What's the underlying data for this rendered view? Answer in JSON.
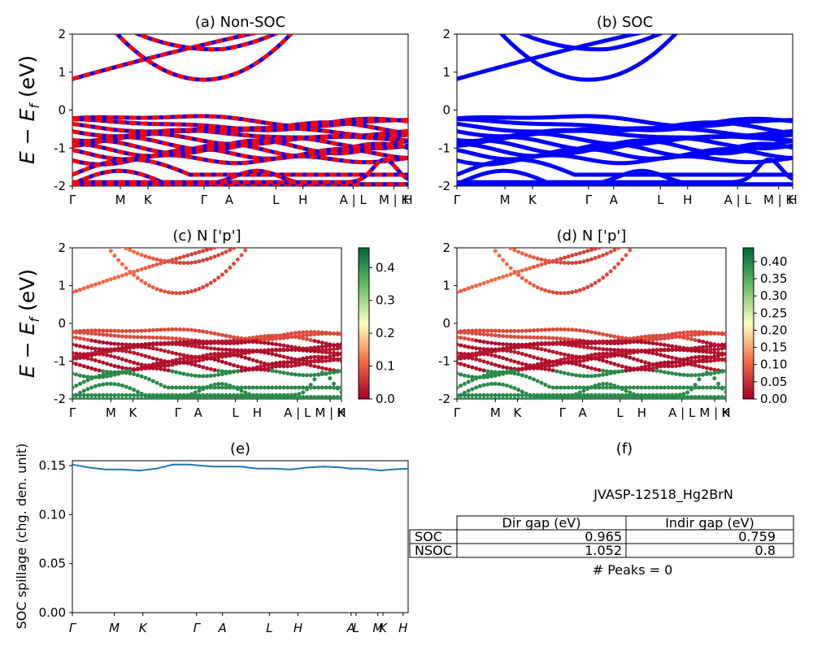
{
  "figure": {
    "kpath_labels": [
      "Γ",
      "M",
      "K",
      "Γ",
      "A",
      "L",
      "H",
      "A | L",
      "M | K",
      "H"
    ],
    "kpath_labels_e": [
      "Γ",
      "M",
      "K",
      "Γ",
      "A",
      "L",
      "H",
      "A",
      "L",
      "M",
      "K",
      "H"
    ],
    "ylabel_energy_base": "E − E",
    "ylabel_energy_sub": "f",
    "ylabel_energy_unit": " (eV)",
    "ylabel_spillage": "SOC spillage (chg. den. unit)"
  },
  "chart_data": [
    {
      "id": "a",
      "type": "line",
      "title": "(a) Non-SOC",
      "xlabel": "",
      "ylabel": "E − E_f (eV)",
      "ylim": [
        -2,
        2
      ],
      "yticks": [
        -2,
        -1,
        0,
        1,
        2
      ],
      "colors": [
        "#ff0000",
        "#0000ff"
      ],
      "style": "red/blue dashed spin-up/spin-down bands"
    },
    {
      "id": "b",
      "type": "line",
      "title": "(b) SOC",
      "xlabel": "",
      "ylabel": "",
      "ylim": [
        -2,
        2
      ],
      "yticks": [
        -2,
        -1,
        0,
        1,
        2
      ],
      "colors": [
        "#0000ff"
      ]
    },
    {
      "id": "c",
      "type": "scatter",
      "title": "(c)  N ['p']",
      "ylabel": "E − E_f (eV)",
      "ylim": [
        -2,
        2
      ],
      "yticks": [
        -2,
        -1,
        0,
        1,
        2
      ],
      "colorbar": {
        "cmap": "RdYlGn",
        "range": [
          0.0,
          0.46
        ],
        "ticks": [
          "0.0",
          "0.1",
          "0.2",
          "0.3",
          "0.4"
        ]
      }
    },
    {
      "id": "d",
      "type": "scatter",
      "title": "(d) N ['p']",
      "ylabel": "",
      "ylim": [
        -2,
        2
      ],
      "yticks": [
        -2,
        -1,
        0,
        1,
        2
      ],
      "colorbar": {
        "cmap": "RdYlGn",
        "range": [
          0.0,
          0.44
        ],
        "ticks": [
          "0.00",
          "0.05",
          "0.10",
          "0.15",
          "0.20",
          "0.25",
          "0.30",
          "0.35",
          "0.40"
        ]
      }
    },
    {
      "id": "e",
      "type": "line",
      "title": "(e)",
      "ylabel": "SOC spillage (chg. den. unit)",
      "ylim": [
        0.0,
        0.155
      ],
      "yticks": [
        "0.00",
        "0.05",
        "0.10",
        "0.15"
      ],
      "x": [
        0,
        0.05,
        0.1,
        0.15,
        0.2,
        0.25,
        0.3,
        0.35,
        0.38,
        0.42,
        0.46,
        0.5,
        0.55,
        0.6,
        0.65,
        0.7,
        0.75,
        0.8,
        0.83,
        0.86,
        0.89,
        0.92,
        0.95,
        1.0
      ],
      "values": [
        0.151,
        0.148,
        0.146,
        0.146,
        0.145,
        0.147,
        0.151,
        0.151,
        0.15,
        0.149,
        0.149,
        0.149,
        0.147,
        0.147,
        0.146,
        0.148,
        0.149,
        0.148,
        0.147,
        0.147,
        0.146,
        0.145,
        0.146,
        0.147
      ],
      "colors": [
        "#1f77b4"
      ]
    }
  ],
  "table": {
    "title": "(f)",
    "caption": "JVASP-12518_Hg2BrN",
    "headers": [
      "",
      "Dir gap (eV)",
      "Indir gap (eV)"
    ],
    "rows": [
      [
        "SOC",
        "0.965",
        "0.759"
      ],
      [
        "NSOC",
        "1.052",
        "0.8"
      ]
    ],
    "footer": "# Peaks = 0"
  }
}
